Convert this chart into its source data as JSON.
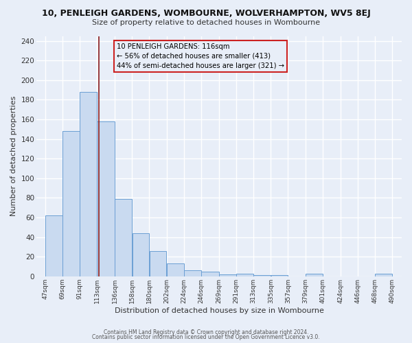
{
  "title_line1": "10, PENLEIGH GARDENS, WOMBOURNE, WOLVERHAMPTON, WV5 8EJ",
  "title_line2": "Size of property relative to detached houses in Wombourne",
  "xlabel": "Distribution of detached houses by size in Wombourne",
  "ylabel": "Number of detached properties",
  "bar_left_edges": [
    47,
    69,
    91,
    113,
    136,
    158,
    180,
    202,
    224,
    246,
    269,
    291,
    313,
    335,
    357,
    379,
    401,
    424,
    446,
    468
  ],
  "bar_widths": [
    22,
    22,
    22,
    23,
    22,
    22,
    22,
    22,
    22,
    23,
    22,
    22,
    22,
    22,
    22,
    22,
    23,
    22,
    22,
    22
  ],
  "bar_heights": [
    62,
    148,
    188,
    158,
    79,
    44,
    26,
    13,
    6,
    5,
    2,
    3,
    1,
    1,
    0,
    3,
    0,
    0,
    0,
    3
  ],
  "bar_color": "#c9daf0",
  "bar_edge_color": "#6b9fd4",
  "grid_color": "#ccccdd",
  "bg_color": "#e8eef8",
  "property_line_x": 116,
  "property_line_color": "#8b1a1a",
  "annotation_title": "10 PENLEIGH GARDENS: 116sqm",
  "annotation_line2": "← 56% of detached houses are smaller (413)",
  "annotation_line3": "44% of semi-detached houses are larger (321) →",
  "annotation_box_edge": "#cc2222",
  "xtick_labels": [
    "47sqm",
    "69sqm",
    "91sqm",
    "113sqm",
    "136sqm",
    "158sqm",
    "180sqm",
    "202sqm",
    "224sqm",
    "246sqm",
    "269sqm",
    "291sqm",
    "313sqm",
    "335sqm",
    "357sqm",
    "379sqm",
    "401sqm",
    "424sqm",
    "446sqm",
    "468sqm",
    "490sqm"
  ],
  "xtick_positions": [
    47,
    69,
    91,
    113,
    136,
    158,
    180,
    202,
    224,
    246,
    269,
    291,
    313,
    335,
    357,
    379,
    401,
    424,
    446,
    468,
    490
  ],
  "ylim": [
    0,
    245
  ],
  "xlim": [
    36,
    502
  ],
  "yticks": [
    0,
    20,
    40,
    60,
    80,
    100,
    120,
    140,
    160,
    180,
    200,
    220,
    240
  ],
  "footer1": "Contains HM Land Registry data © Crown copyright and database right 2024.",
  "footer2": "Contains public sector information licensed under the Open Government Licence v3.0."
}
